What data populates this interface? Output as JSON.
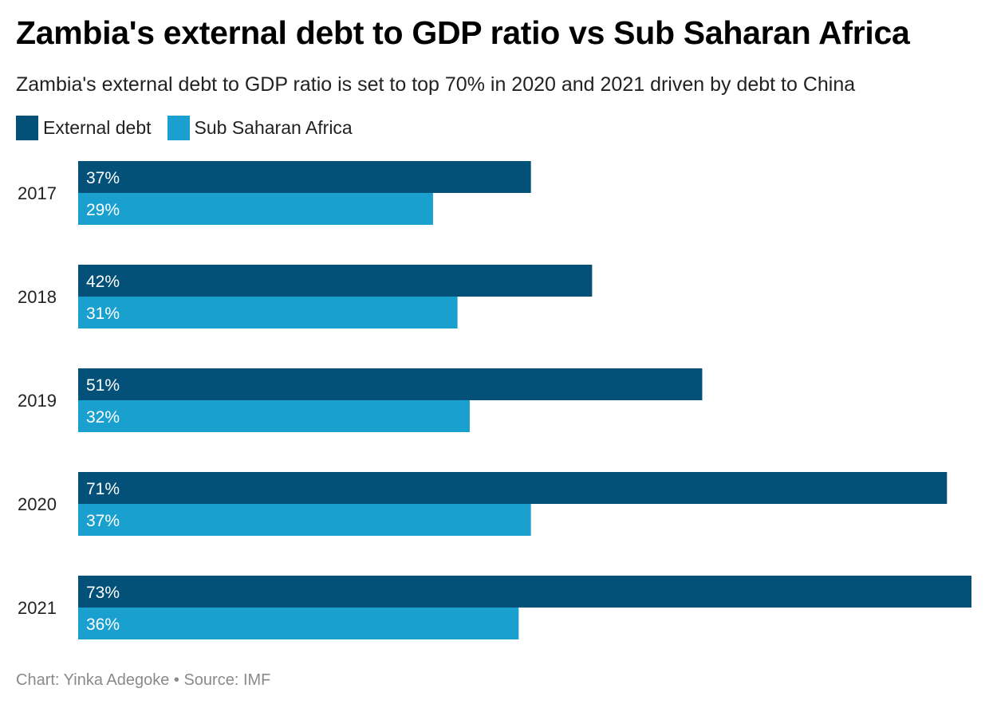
{
  "footer": "Chart: Yinka Adegoke • Source: IMF",
  "chart_data": {
    "type": "bar",
    "orientation": "horizontal",
    "title": "Zambia's external debt to GDP ratio vs Sub Saharan Africa",
    "subtitle": "Zambia's external debt to GDP ratio is set to top 70% in 2020 and 2021 driven by debt to China",
    "categories": [
      "2017",
      "2018",
      "2019",
      "2020",
      "2021"
    ],
    "series": [
      {
        "name": "External debt",
        "color": "#035178",
        "values": [
          37,
          42,
          51,
          71,
          73
        ],
        "labels": [
          "37%",
          "42%",
          "51%",
          "71%",
          "73%"
        ]
      },
      {
        "name": "Sub Saharan Africa",
        "color": "#1aa0cf",
        "values": [
          29,
          31,
          32,
          37,
          36
        ],
        "labels": [
          "29%",
          "31%",
          "32%",
          "37%",
          "36%"
        ]
      }
    ],
    "xlim": [
      0,
      73
    ],
    "grid": false,
    "legend": "top-left"
  }
}
